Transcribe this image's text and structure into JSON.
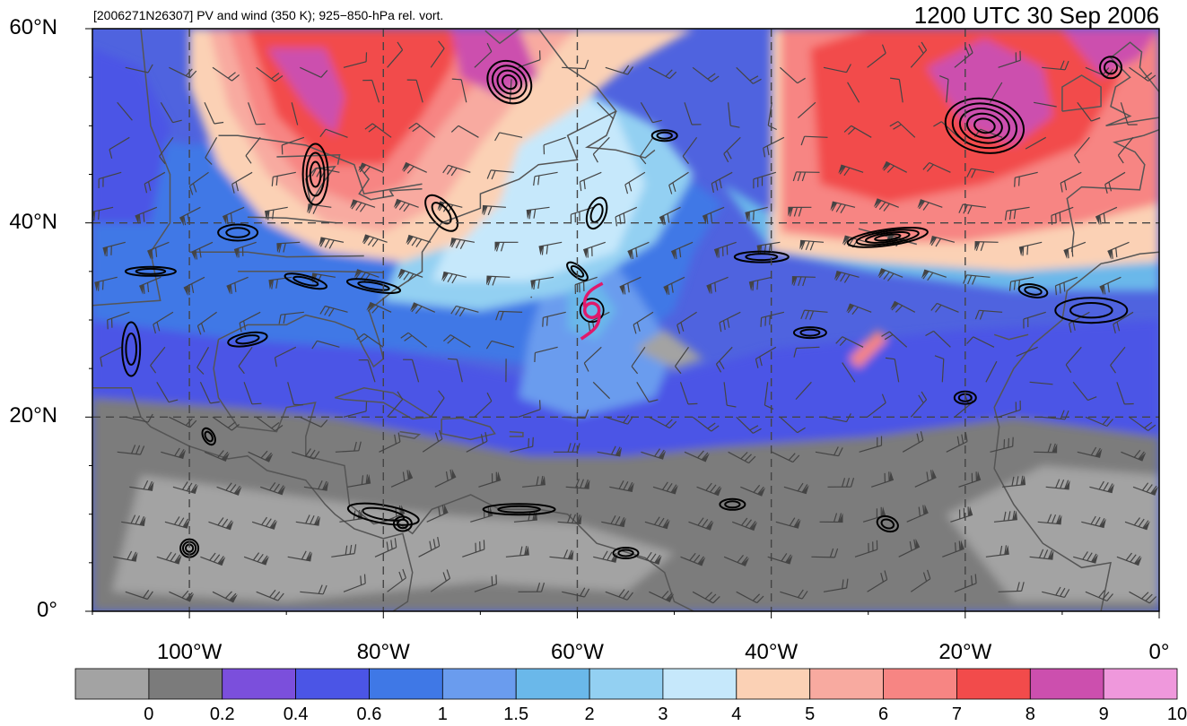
{
  "header": {
    "subtitle": "[2006271N26307] PV and wind (350 K); 925−850-hPa rel. vort.",
    "time": "1200 UTC 30 Sep 2006"
  },
  "axes": {
    "lat_labels": [
      "0°",
      "20°N",
      "40°N",
      "60°N"
    ],
    "lat_values": [
      0,
      20,
      40,
      60
    ],
    "lon_labels": [
      "100°W",
      "80°W",
      "60°W",
      "40°W",
      "20°W",
      "0°"
    ],
    "lon_values": [
      -100,
      -80,
      -60,
      -40,
      -20,
      0
    ],
    "lon_range": [
      -110,
      0
    ],
    "lat_range": [
      0,
      60
    ],
    "grid": "dashed"
  },
  "colorbar": {
    "labels": [
      "0",
      "0.2",
      "0.4",
      "0.6",
      "1",
      "1.5",
      "2",
      "3",
      "4",
      "5",
      "6",
      "7",
      "8",
      "9",
      "10"
    ],
    "colors": [
      "#a3a3a3",
      "#7b7b7b",
      "#7b4fdc",
      "#4b55e6",
      "#3f78e6",
      "#6a9cee",
      "#6ab8ea",
      "#93d0f2",
      "#c6e8fb",
      "#fbd1b5",
      "#f8aaa0",
      "#f78583",
      "#f24b4b",
      "#cc4fae",
      "#ef98dc"
    ]
  },
  "storm": {
    "id": "2006271N26307",
    "lon": -58.5,
    "lat": 31
  }
}
